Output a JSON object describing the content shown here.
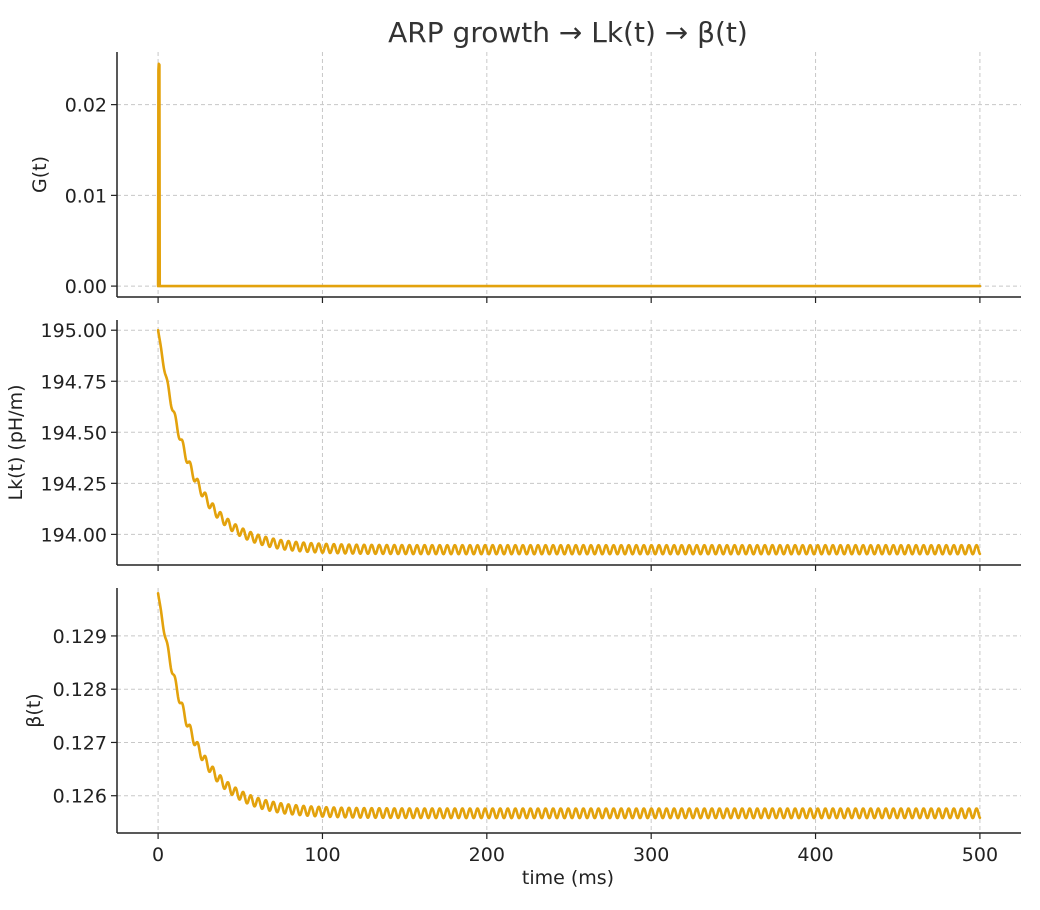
{
  "chart_data": {
    "type": "line",
    "title": "ARP growth → Lk(t) → β(t)",
    "xlabel": "time (ms)",
    "xlim": [
      -25,
      525
    ],
    "xticks": [
      0,
      100,
      200,
      300,
      400,
      500
    ],
    "xtick_labels": [
      "0",
      "100",
      "200",
      "300",
      "400",
      "500"
    ],
    "grid": true,
    "line_color": "#E3A20C",
    "panels": [
      {
        "id": "G",
        "ylabel": "G(t)",
        "ylim": [
          -0.0012,
          0.0258
        ],
        "yticks": [
          0.0,
          0.01,
          0.02
        ],
        "ytick_labels": [
          "0.00",
          "0.01",
          "0.02"
        ],
        "series": [
          {
            "x": [
              0,
              0.2,
              0.4,
              0.6,
              0.8,
              1.0,
              1.5,
              2,
              5,
              20,
              100,
              500
            ],
            "y": [
              0.0,
              0.0238,
              0.0245,
              0.0241,
              0.0244,
              0.0,
              0.0,
              0.0,
              0.0,
              0.0,
              0.0,
              0.0
            ]
          }
        ]
      },
      {
        "id": "Lk",
        "ylabel": "Lk(t) (pH/m)",
        "ylim": [
          193.85,
          195.05
        ],
        "yticks": [
          194.0,
          194.25,
          194.5,
          194.75,
          195.0
        ],
        "ytick_labels": [
          "194.00",
          "194.25",
          "194.50",
          "194.75",
          "195.00"
        ],
        "series": [
          {
            "baseline": 193.925,
            "initial_offset": 1.075,
            "decay_tau_ms": 20,
            "ripple_amplitude": 0.022,
            "ripple_period_ms": 4.6,
            "t_end": 500
          }
        ]
      },
      {
        "id": "beta",
        "ylabel": "β(t)",
        "ylim": [
          0.1253,
          0.1299
        ],
        "yticks": [
          0.126,
          0.127,
          0.128,
          0.129
        ],
        "ytick_labels": [
          "0.126",
          "0.127",
          "0.128",
          "0.129"
        ],
        "series": [
          {
            "baseline": 0.12567,
            "initial_offset": 0.00413,
            "decay_tau_ms": 20,
            "ripple_amplitude": 9e-05,
            "ripple_period_ms": 4.6,
            "t_end": 500
          }
        ]
      }
    ]
  }
}
